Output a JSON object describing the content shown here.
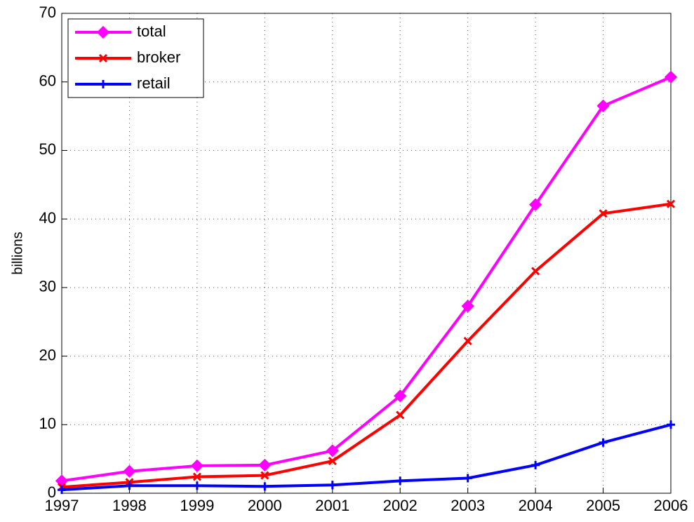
{
  "chart_data": {
    "type": "line",
    "y_label": "billions",
    "x": [
      1997,
      1998,
      1999,
      2000,
      2001,
      2002,
      2003,
      2004,
      2005,
      2006
    ],
    "series": [
      {
        "name": "total",
        "color": "#ff00ff",
        "marker": "diamond",
        "values": [
          1.8,
          3.2,
          4.0,
          4.1,
          6.2,
          14.2,
          27.3,
          42.1,
          56.5,
          60.7
        ]
      },
      {
        "name": "broker",
        "color": "#ff0000",
        "marker": "x",
        "values": [
          0.9,
          1.6,
          2.4,
          2.6,
          4.7,
          11.4,
          22.2,
          32.4,
          40.8,
          42.2
        ]
      },
      {
        "name": "retail",
        "color": "#0000ff",
        "marker": "plus",
        "values": [
          0.5,
          1.1,
          1.1,
          1.0,
          1.2,
          1.8,
          2.2,
          4.1,
          7.4,
          10.0
        ]
      }
    ],
    "xlim": [
      1997,
      2006
    ],
    "xticks": [
      1997,
      1998,
      1999,
      2000,
      2001,
      2002,
      2003,
      2004,
      2005,
      2006
    ],
    "ylim": [
      0,
      70
    ],
    "yticks": [
      0,
      10,
      20,
      30,
      40,
      50,
      60,
      70
    ],
    "grid": true,
    "legend": "upper-left"
  }
}
